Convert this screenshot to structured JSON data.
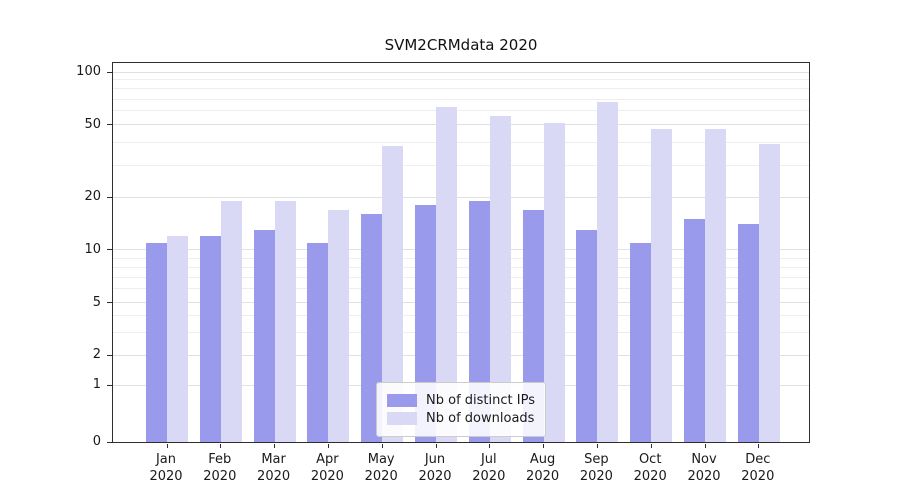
{
  "chart_data": {
    "type": "bar",
    "title": "SVM2CRMdata 2020",
    "categories": [
      {
        "month": "Jan",
        "year": "2020"
      },
      {
        "month": "Feb",
        "year": "2020"
      },
      {
        "month": "Mar",
        "year": "2020"
      },
      {
        "month": "Apr",
        "year": "2020"
      },
      {
        "month": "May",
        "year": "2020"
      },
      {
        "month": "Jun",
        "year": "2020"
      },
      {
        "month": "Jul",
        "year": "2020"
      },
      {
        "month": "Aug",
        "year": "2020"
      },
      {
        "month": "Sep",
        "year": "2020"
      },
      {
        "month": "Oct",
        "year": "2020"
      },
      {
        "month": "Nov",
        "year": "2020"
      },
      {
        "month": "Dec",
        "year": "2020"
      }
    ],
    "series": [
      {
        "name": "Nb of distinct IPs",
        "color": "#9a9aec",
        "values": [
          11,
          12,
          13,
          11,
          16,
          18,
          19,
          17,
          13,
          11,
          15,
          14
        ]
      },
      {
        "name": "Nb of downloads",
        "color": "#d9d9f6",
        "values": [
          12,
          19,
          19,
          17,
          38,
          63,
          56,
          51,
          67,
          47,
          47,
          39
        ]
      }
    ],
    "yscale": "symlog",
    "yticks": [
      0,
      1,
      2,
      5,
      10,
      20,
      50,
      100
    ],
    "minor_gridlines": [
      3,
      4,
      6,
      7,
      8,
      9,
      30,
      40,
      60,
      70,
      80,
      90
    ],
    "ylim": [
      0,
      108
    ],
    "xlabel": "",
    "ylabel": "",
    "grid": "horizontal",
    "legend": {
      "position": "lower center"
    }
  },
  "colors": {
    "grid_major": "#e0e0e0",
    "grid_minor": "#eeeeee",
    "spine": "#2e2e2e"
  }
}
